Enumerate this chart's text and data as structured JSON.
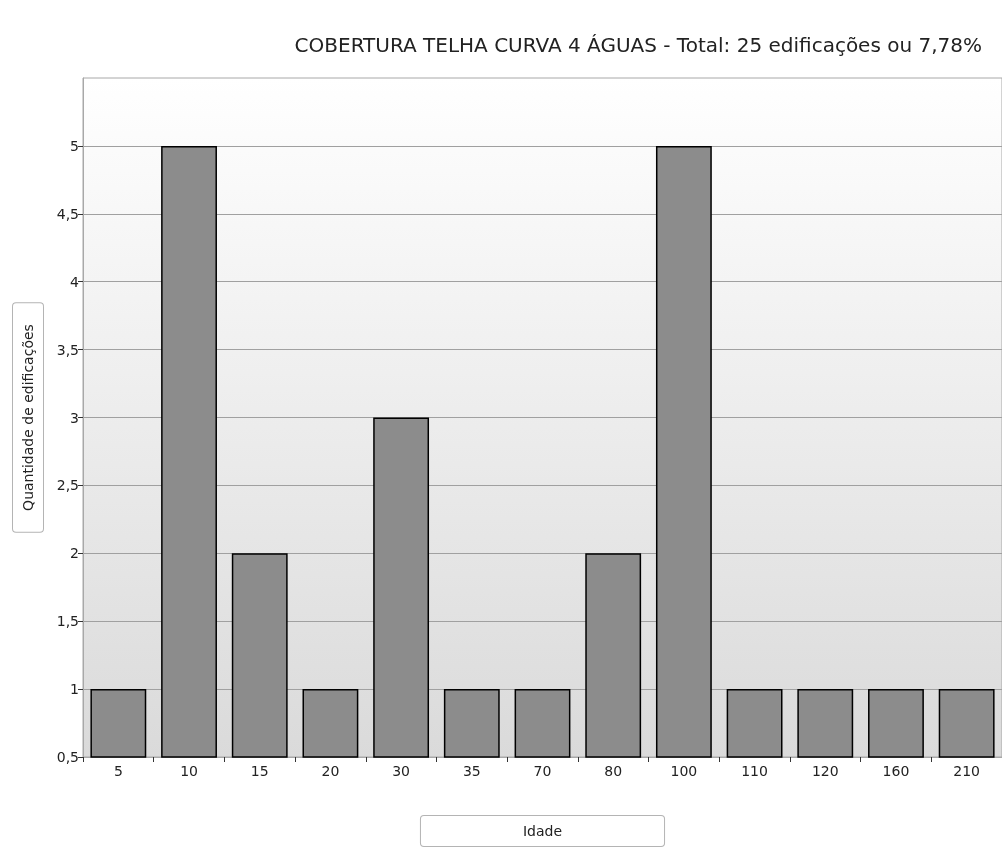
{
  "chart_data": {
    "type": "bar",
    "title": "COBERTURA TELHA CURVA 4 ÁGUAS - Total: 25 edificações ou 7,78%",
    "xlabel": "Idade",
    "ylabel": "Quantidade de edificações",
    "categories": [
      "5",
      "10",
      "15",
      "20",
      "30",
      "35",
      "70",
      "80",
      "100",
      "110",
      "120",
      "160",
      "210"
    ],
    "values": [
      1,
      5,
      2,
      1,
      3,
      1,
      1,
      2,
      5,
      1,
      1,
      1,
      1
    ],
    "color": "#8c8c8c",
    "ylim": [
      0.5,
      5.5
    ],
    "yticks": [
      {
        "value": 0.5,
        "label": "0,5"
      },
      1,
      {
        "value": 1.5,
        "label": "1,5"
      },
      2,
      {
        "value": 2.5,
        "label": "2,5"
      },
      3,
      {
        "value": 3.5,
        "label": "3,5"
      },
      4,
      {
        "value": 4.5,
        "label": "4,5"
      },
      5
    ],
    "grid": "y"
  }
}
